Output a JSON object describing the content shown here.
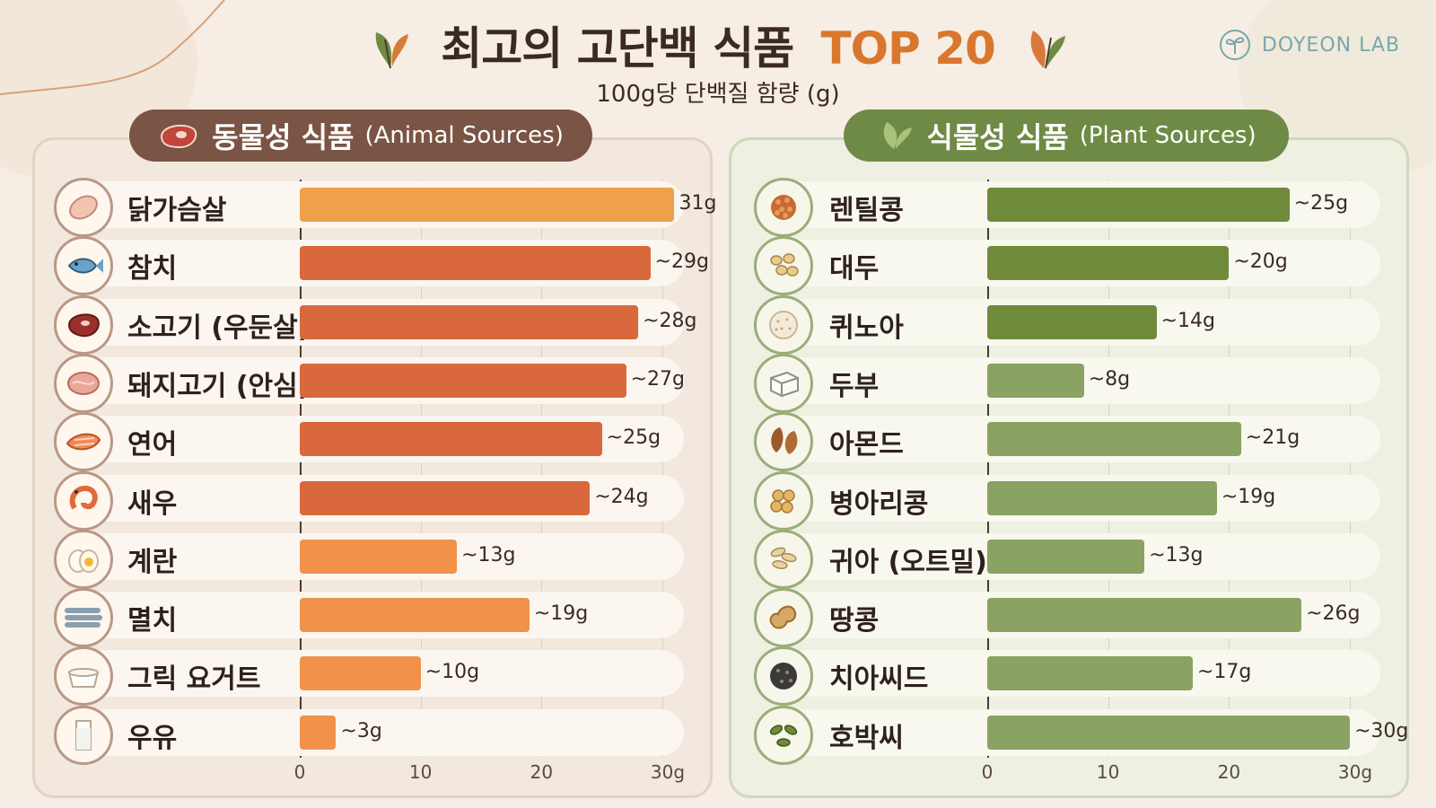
{
  "header": {
    "title_main": "최고의 고단백 식품",
    "title_accent": "TOP 20",
    "subtitle": "100g당 단백질 함량 (g)",
    "brand": "DOYEON LAB"
  },
  "chart_data": [
    {
      "type": "bar",
      "orientation": "horizontal",
      "title": "동물성 식품",
      "title_en": "(Animal Sources)",
      "categories": [
        "닭가슴살",
        "참치",
        "소고기 (우둔살)",
        "돼지고기 (안심)",
        "연어",
        "새우",
        "계란",
        "멸치",
        "그릭 요거트",
        "우유"
      ],
      "values": [
        31,
        29,
        28,
        27,
        25,
        24,
        13,
        19,
        10,
        3
      ],
      "value_labels": [
        "31g",
        "~29g",
        "~28g",
        "~27g",
        "~25g",
        "~24g",
        "~13g",
        "~19g",
        "~10g",
        "~3g"
      ],
      "bar_colors": [
        "#f0a04a",
        "#d9683c",
        "#d9683c",
        "#d9683c",
        "#d9683c",
        "#d9683c",
        "#f0924a",
        "#f0924a",
        "#f0924a",
        "#f0924a"
      ],
      "icons": [
        "chicken-breast-icon",
        "tuna-fish-icon",
        "beef-steak-icon",
        "pork-icon",
        "salmon-icon",
        "shrimp-icon",
        "egg-icon",
        "anchovy-icon",
        "greek-yogurt-icon",
        "milk-icon"
      ],
      "xlim": [
        0,
        30
      ],
      "x_ticks": [
        "0",
        "10",
        "20",
        "30g"
      ],
      "grid": true
    },
    {
      "type": "bar",
      "orientation": "horizontal",
      "title": "식물성 식품",
      "title_en": "(Plant Sources)",
      "categories": [
        "렌틸콩",
        "대두",
        "퀴노아",
        "두부",
        "아몬드",
        "병아리콩",
        "귀아 (오트밀)",
        "땅콩",
        "치아씨드",
        "호박씨"
      ],
      "values": [
        25,
        20,
        14,
        8,
        21,
        19,
        13,
        26,
        17,
        30
      ],
      "value_labels": [
        "~25g",
        "~20g",
        "~14g",
        "~8g",
        "~21g",
        "~19g",
        "~13g",
        "~26g",
        "~17g",
        "~30g"
      ],
      "bar_colors": [
        "#6f8a3a",
        "#6f8a3a",
        "#6f8a3a",
        "#8aa262",
        "#8aa262",
        "#8aa262",
        "#8aa262",
        "#8aa262",
        "#8aa262",
        "#8aa262"
      ],
      "icons": [
        "lentil-icon",
        "soybean-icon",
        "quinoa-icon",
        "tofu-icon",
        "almond-icon",
        "chickpea-icon",
        "oatmeal-icon",
        "peanut-icon",
        "chia-seed-icon",
        "pumpkin-seed-icon"
      ],
      "xlim": [
        0,
        30
      ],
      "x_ticks": [
        "0",
        "10",
        "20",
        "30g"
      ],
      "grid": true
    }
  ]
}
